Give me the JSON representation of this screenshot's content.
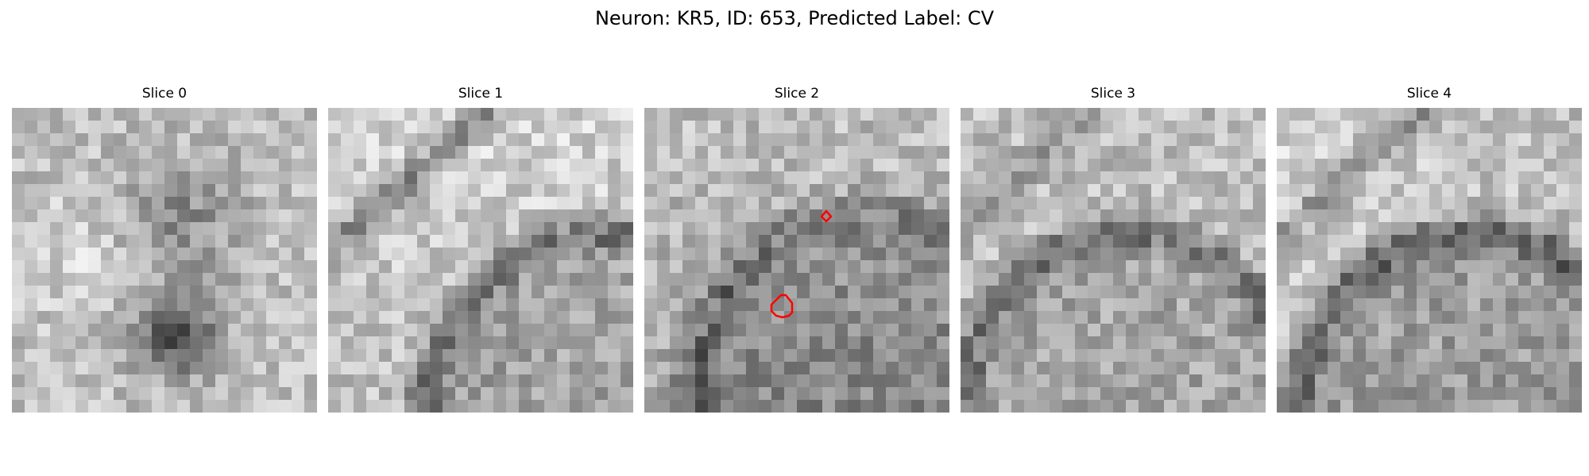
{
  "figure": {
    "title": "Neuron: KR5, ID: 653, Predicted Label: CV"
  },
  "colors": {
    "contour": "#ff0000",
    "colormap": "gray"
  },
  "panels": [
    {
      "title": "Slice 0",
      "texture": "central-dark-blob",
      "seed": 11
    },
    {
      "title": "Slice 1",
      "texture": "diagonal-band-and-arc",
      "seed": 23,
      "has_contour": false
    },
    {
      "title": "Slice 2",
      "texture": "noisy-arc",
      "seed": 37,
      "has_contour": true
    },
    {
      "title": "Slice 3",
      "texture": "large-arc",
      "seed": 41,
      "has_contour": false
    },
    {
      "title": "Slice 4",
      "texture": "large-arc-dark",
      "seed": 53,
      "has_contour": false
    }
  ]
}
